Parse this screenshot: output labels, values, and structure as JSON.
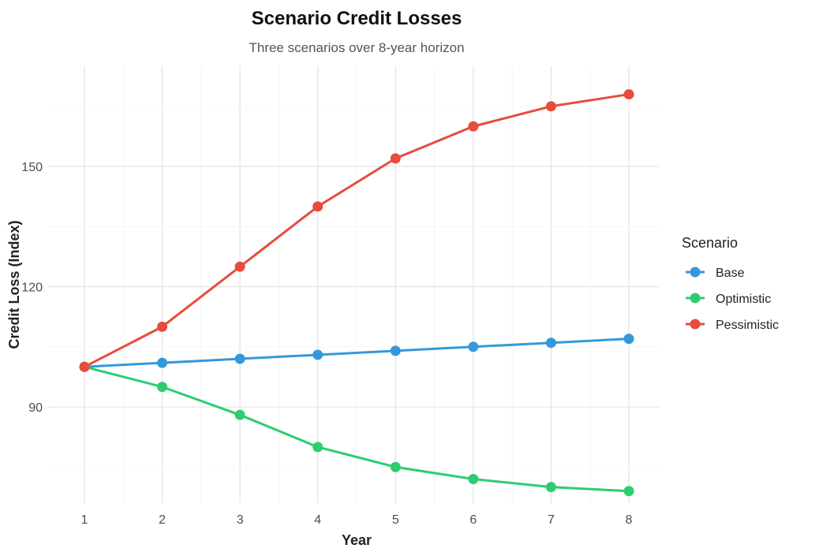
{
  "chart_data": {
    "type": "line",
    "title": "Scenario Credit Losses",
    "subtitle": "Three scenarios over 8-year horizon",
    "xlabel": "Year",
    "ylabel": "Credit Loss (Index)",
    "x": [
      1,
      2,
      3,
      4,
      5,
      6,
      7,
      8
    ],
    "x_ticks": [
      "1",
      "2",
      "3",
      "4",
      "5",
      "6",
      "7",
      "8"
    ],
    "y_ticks": [
      90,
      120,
      150
    ],
    "ylim": [
      66,
      175
    ],
    "xlim": [
      1,
      8
    ],
    "grid": true,
    "legend": {
      "title": "Scenario",
      "placement": "right"
    },
    "series": [
      {
        "name": "Base",
        "color": "#3498db",
        "values": [
          100,
          101,
          102,
          103,
          104,
          105,
          106,
          107
        ]
      },
      {
        "name": "Optimistic",
        "color": "#2ecc71",
        "values": [
          100,
          95,
          88,
          80,
          75,
          72,
          70,
          69
        ]
      },
      {
        "name": "Pessimistic",
        "color": "#e74c3c",
        "values": [
          100,
          110,
          125,
          140,
          152,
          160,
          165,
          168
        ]
      }
    ]
  }
}
